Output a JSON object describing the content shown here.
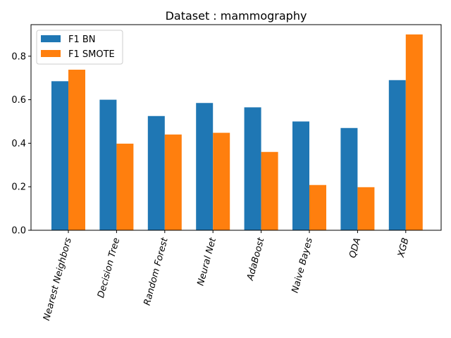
{
  "chart_data": {
    "type": "bar",
    "title": "Dataset : mammography",
    "xlabel": "",
    "ylabel": "",
    "categories": [
      "Nearest Neighbors",
      "Decision Tree",
      "Random Forest",
      "Neural Net",
      "AdaBoost",
      "Naive Bayes",
      "QDA",
      "XGB"
    ],
    "series": [
      {
        "name": "F1 BN",
        "color": "#1f77b4",
        "values": [
          0.685,
          0.6,
          0.525,
          0.585,
          0.565,
          0.5,
          0.47,
          0.69
        ]
      },
      {
        "name": "F1 SMOTE",
        "color": "#ff7f0e",
        "values": [
          0.738,
          0.398,
          0.44,
          0.448,
          0.36,
          0.208,
          0.198,
          0.9
        ]
      }
    ],
    "ylim": [
      0,
      0.945
    ],
    "yticks": [
      0.0,
      0.2,
      0.4,
      0.6,
      0.8
    ],
    "ytick_labels": [
      "0.0",
      "0.2",
      "0.4",
      "0.6",
      "0.8"
    ],
    "legend_position": "top-left",
    "grid": false
  }
}
